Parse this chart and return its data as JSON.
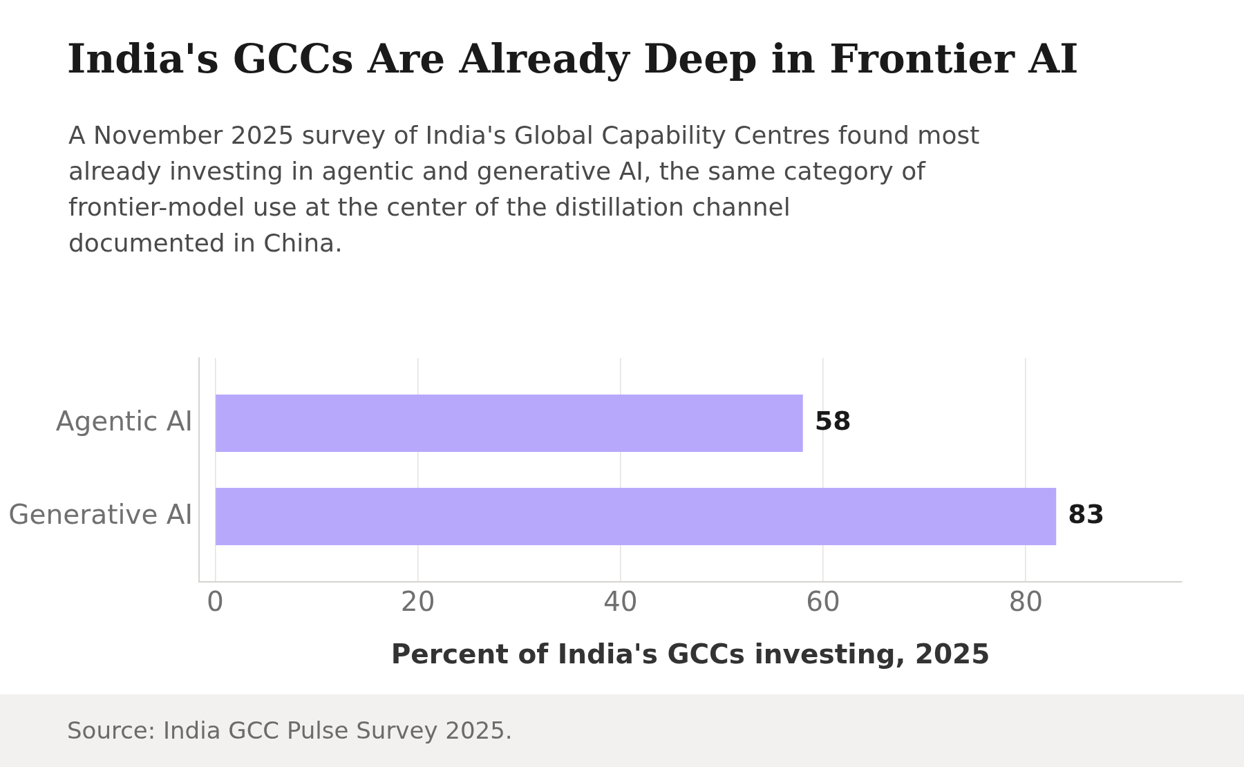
{
  "chart_data": {
    "type": "bar",
    "orientation": "horizontal",
    "title": "India's GCCs Are Already Deep in Frontier AI",
    "subtitle": "A November 2025 survey of India's Global Capability Centres found most already investing in agentic and generative AI, the same category of frontier-model use at the center of the distillation channel documented in China.",
    "xlabel": "Percent of India's GCCs investing, 2025",
    "categories": [
      "Agentic AI",
      "Generative AI"
    ],
    "values": [
      58,
      83
    ],
    "color": "#b8a8fc",
    "xlim": [
      -1.6,
      95.4
    ],
    "xticks": [
      0,
      20,
      40,
      60,
      80
    ],
    "grid": "x",
    "data_labels": true,
    "legend": false,
    "annotations": [
      "Source: India GCC Pulse Survey 2025."
    ]
  }
}
